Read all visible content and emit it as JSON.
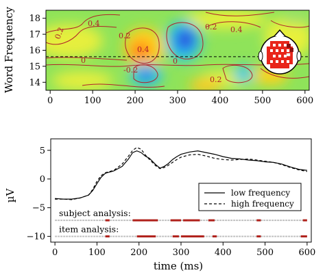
{
  "chart_data": [
    {
      "type": "heatmap",
      "ylabel": "Word Frequency",
      "xlim": [
        -10,
        610
      ],
      "ylim": [
        13.5,
        18.5
      ],
      "x_ticks": [
        "0",
        "100",
        "200",
        "300",
        "400",
        "500",
        "600"
      ],
      "y_ticks": [
        "14",
        "15",
        "16",
        "17",
        "18"
      ],
      "reference_line_y": 15.6,
      "contour_labels": [
        "0.4",
        "0.2",
        "0.2",
        "0.4",
        "0",
        "0",
        "0.2",
        "-0.2",
        "0.4",
        "0.2"
      ],
      "colors": {
        "low": "#2a4fe0",
        "mid": "#7ee05a",
        "high": "#e8251a",
        "contour": "#b0202a"
      },
      "inset": "scalp electrode map"
    },
    {
      "type": "line",
      "xlabel": "time (ms)",
      "ylabel": "µV",
      "xlim": [
        -10,
        610
      ],
      "ylim": [
        -11,
        7
      ],
      "x_ticks": [
        "0",
        "100",
        "200",
        "300",
        "400",
        "500",
        "600"
      ],
      "y_ticks": [
        "5",
        "0",
        "−5",
        "−10"
      ],
      "legend_position": "bottom-right",
      "series": [
        {
          "name": "low frequency",
          "style": "solid",
          "x": [
            0,
            20,
            40,
            60,
            80,
            90,
            100,
            110,
            120,
            140,
            160,
            175,
            185,
            195,
            205,
            215,
            225,
            240,
            250,
            260,
            270,
            280,
            290,
            300,
            320,
            340,
            360,
            380,
            400,
            420,
            440,
            460,
            480,
            500,
            520,
            540,
            560,
            580,
            600
          ],
          "values": [
            -3.4,
            -3.5,
            -3.5,
            -3.3,
            -2.8,
            -2.0,
            -0.8,
            0.3,
            1.0,
            1.4,
            2.2,
            3.5,
            4.6,
            4.9,
            4.6,
            4.0,
            3.6,
            2.5,
            1.9,
            2.2,
            2.7,
            3.4,
            3.9,
            4.3,
            4.7,
            4.9,
            4.6,
            4.3,
            3.9,
            3.6,
            3.5,
            3.3,
            3.2,
            3.0,
            2.9,
            2.6,
            2.1,
            1.7,
            1.5
          ]
        },
        {
          "name": "high frequency",
          "style": "dashed",
          "x": [
            0,
            20,
            40,
            60,
            80,
            90,
            100,
            110,
            120,
            140,
            160,
            175,
            185,
            195,
            205,
            215,
            225,
            240,
            250,
            260,
            270,
            280,
            290,
            300,
            320,
            340,
            360,
            380,
            400,
            420,
            440,
            460,
            480,
            500,
            520,
            540,
            560,
            580,
            600
          ],
          "values": [
            -3.5,
            -3.5,
            -3.6,
            -3.3,
            -2.8,
            -1.8,
            -0.4,
            0.6,
            1.1,
            1.5,
            2.6,
            4.0,
            5.0,
            5.5,
            5.2,
            4.2,
            3.4,
            2.3,
            1.8,
            2.0,
            2.4,
            2.9,
            3.4,
            3.8,
            4.2,
            4.3,
            4.0,
            3.6,
            3.4,
            3.3,
            3.4,
            3.5,
            3.3,
            3.1,
            2.9,
            2.5,
            2.0,
            1.6,
            1.3
          ]
        }
      ],
      "analysis_rows": [
        {
          "label": "subject analysis:",
          "y": -7.2,
          "segments": [
            [
              120,
              130
            ],
            [
              185,
              245
            ],
            [
              275,
              300
            ],
            [
              305,
              345
            ],
            [
              365,
              380
            ],
            [
              480,
              490
            ],
            [
              590,
              600
            ]
          ]
        },
        {
          "label": "item analysis:",
          "y": -10.0,
          "segments": [
            [
              120,
              130
            ],
            [
              195,
              240
            ],
            [
              280,
              295
            ],
            [
              300,
              355
            ],
            [
              375,
              385
            ],
            [
              480,
              490
            ],
            [
              585,
              600
            ]
          ]
        }
      ],
      "colors": {
        "significant": "#b0201a",
        "baseline": "#c0c0c0"
      }
    }
  ]
}
